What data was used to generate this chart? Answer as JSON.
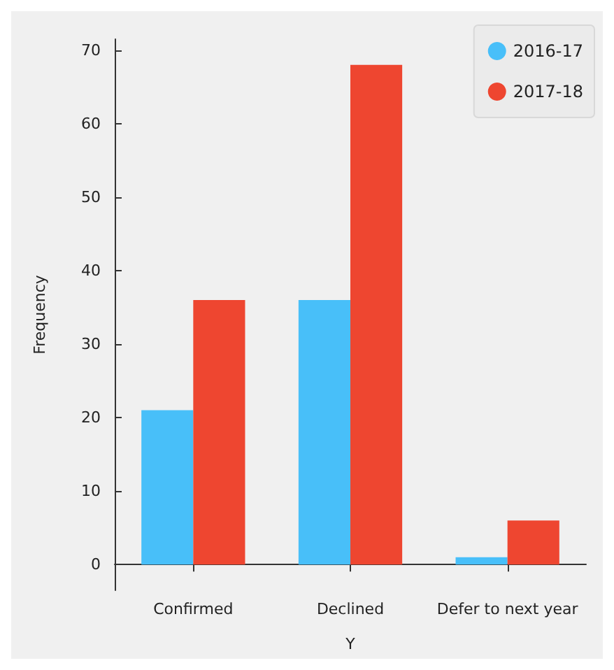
{
  "chart_data": {
    "type": "bar",
    "xlabel": "Y",
    "ylabel": "Frequency",
    "categories": [
      "Confirmed",
      "Declined",
      "Defer to next year"
    ],
    "series": [
      {
        "name": "2016-17",
        "color": "#48bff9",
        "values": [
          21,
          36,
          1
        ]
      },
      {
        "name": "2017-18",
        "color": "#ee4630",
        "values": [
          36,
          68,
          6
        ]
      }
    ],
    "ylim": [
      -3.5,
      71.5
    ],
    "yticks": [
      0,
      10,
      20,
      30,
      40,
      50,
      60,
      70
    ],
    "grid": false,
    "legend": "top right"
  }
}
